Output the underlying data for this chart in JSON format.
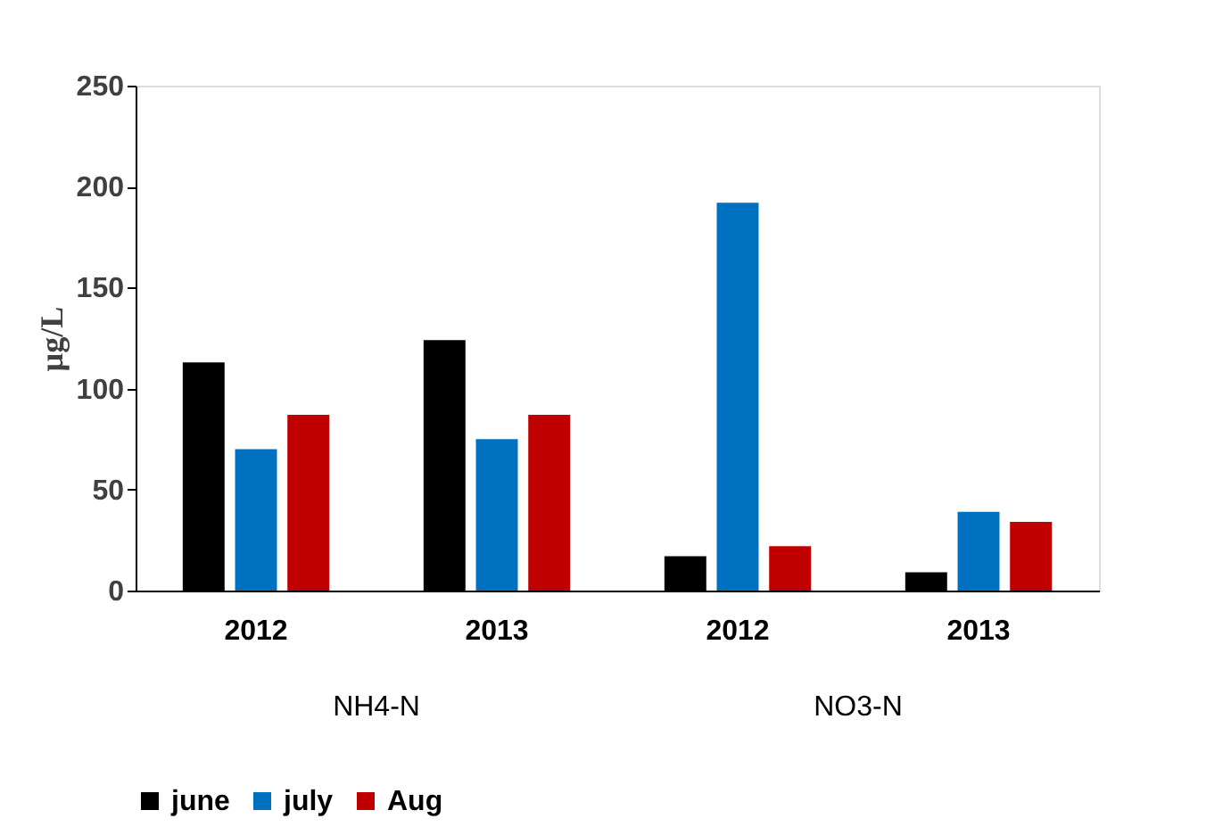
{
  "chart_data": {
    "type": "bar",
    "ylabel": "µg/L",
    "categories": [
      "2012",
      "2013",
      "2012",
      "2013"
    ],
    "annotations": [
      "NH4-N",
      "NO3-N"
    ],
    "series": [
      {
        "name": "june",
        "color": "#000000",
        "values": [
          113,
          124,
          17,
          9
        ]
      },
      {
        "name": "july",
        "color": "#0070c0",
        "values": [
          70,
          75,
          192,
          39
        ]
      },
      {
        "name": "Aug",
        "color": "#c00000",
        "values": [
          87,
          87,
          22,
          34
        ]
      }
    ],
    "ylim": [
      0,
      250
    ],
    "yticks": [
      0,
      50,
      100,
      150,
      200,
      250
    ],
    "grid": false,
    "legend": "bottom"
  }
}
